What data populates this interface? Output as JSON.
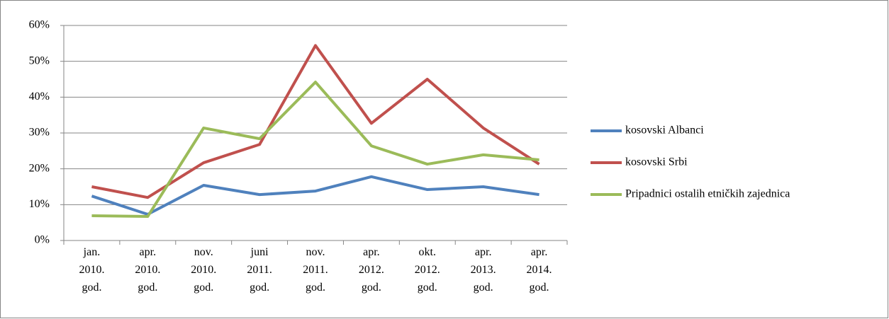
{
  "chart_data": {
    "type": "line",
    "categories": [
      "jan. 2010. god.",
      "apr. 2010. god.",
      "nov. 2010. god.",
      "juni 2011. god.",
      "nov. 2011. god.",
      "apr. 2012. god.",
      "okt. 2012. god.",
      "apr. 2013. god.",
      "apr. 2014. god."
    ],
    "series": [
      {
        "name": "kosovski Albanci",
        "color": "#4f81bd",
        "values": [
          12.4,
          7.3,
          15.4,
          12.8,
          13.8,
          17.8,
          14.2,
          15.0,
          12.8
        ]
      },
      {
        "name": "kosovski Srbi",
        "color": "#c0504d",
        "values": [
          15.0,
          12.0,
          21.7,
          26.8,
          54.4,
          32.7,
          45.0,
          31.4,
          21.3
        ]
      },
      {
        "name": "Pripadnici ostalih etničkih zajednica",
        "color": "#9bbb59",
        "values": [
          6.9,
          6.7,
          31.4,
          28.4,
          44.2,
          26.4,
          21.3,
          23.9,
          22.5
        ]
      }
    ],
    "ylim": [
      0,
      60
    ],
    "yticks": [
      {
        "value": 0,
        "label": "0%"
      },
      {
        "value": 10,
        "label": "10%"
      },
      {
        "value": 20,
        "label": "20%"
      },
      {
        "value": 30,
        "label": "30%"
      },
      {
        "value": 40,
        "label": "40%"
      },
      {
        "value": 50,
        "label": "50%"
      },
      {
        "value": 60,
        "label": "60%"
      }
    ],
    "grid": true,
    "legend": "right"
  }
}
